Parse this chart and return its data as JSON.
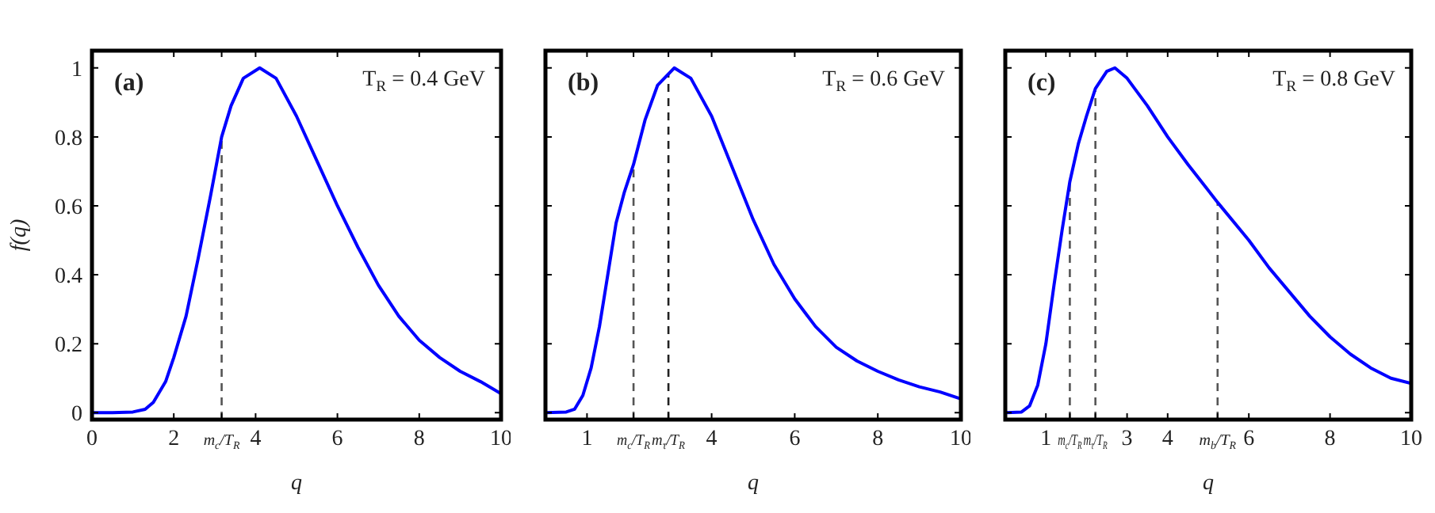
{
  "chart_data": [
    {
      "type": "line",
      "xlabel": "q",
      "ylabel": "f(q)",
      "annotations": [
        "(a)",
        "T$_{R}$ = 0.4 GeV"
      ],
      "xlim": [
        0,
        10
      ],
      "ylim": [
        -0.02,
        1.05
      ],
      "xticks": [
        0,
        2,
        {
          "value": 3.17,
          "label": "m$_{c}$/T$_{R}$"
        },
        4,
        6,
        8,
        10
      ],
      "yticks": [
        0,
        0.2,
        0.4,
        0.6,
        0.8,
        1
      ],
      "series": [
        {
          "color": "#0000ff",
          "x": [
            0,
            0.5,
            1.0,
            1.3,
            1.5,
            1.8,
            2.0,
            2.3,
            2.6,
            2.9,
            3.17,
            3.4,
            3.7,
            4.1,
            4.5,
            5.0,
            5.5,
            6.0,
            6.5,
            7.0,
            7.5,
            8.0,
            8.5,
            9.0,
            9.5,
            10
          ],
          "values": [
            0,
            0,
            0.002,
            0.01,
            0.03,
            0.09,
            0.16,
            0.28,
            0.45,
            0.63,
            0.8,
            0.89,
            0.97,
            1.0,
            0.97,
            0.86,
            0.73,
            0.6,
            0.48,
            0.37,
            0.28,
            0.21,
            0.16,
            0.12,
            0.09,
            0.055
          ]
        }
      ],
      "ref_lines": [
        {
          "axis": "x",
          "value": 3.17,
          "color": "#555555",
          "line_style": "dashed"
        }
      ]
    },
    {
      "type": "line",
      "xlabel": "q",
      "annotations": [
        "(b)",
        "T$_{R}$ = 0.6 GeV"
      ],
      "xlim": [
        0,
        10
      ],
      "ylim": [
        -0.02,
        1.05
      ],
      "tick_labels": "x",
      "xticks": [
        1,
        {
          "value": 2.12,
          "label": "m$_{c}$/T$_{R}$"
        },
        {
          "value": 2.96,
          "label": "m$_{τ}$/T$_{R}$"
        },
        4,
        6,
        8,
        10
      ],
      "yticks": [
        0,
        0.2,
        0.4,
        0.6,
        0.8,
        1
      ],
      "series": [
        {
          "color": "#0000ff",
          "x": [
            0,
            0.5,
            0.7,
            0.9,
            1.1,
            1.3,
            1.5,
            1.7,
            1.9,
            2.12,
            2.4,
            2.7,
            3.1,
            3.5,
            4.0,
            4.5,
            5.0,
            5.5,
            6.0,
            6.5,
            7.0,
            7.5,
            8.0,
            8.5,
            9.0,
            9.5,
            10
          ],
          "values": [
            0,
            0.002,
            0.01,
            0.05,
            0.13,
            0.25,
            0.4,
            0.55,
            0.64,
            0.72,
            0.85,
            0.95,
            1.0,
            0.97,
            0.86,
            0.71,
            0.56,
            0.43,
            0.33,
            0.25,
            0.19,
            0.15,
            0.12,
            0.095,
            0.075,
            0.06,
            0.04
          ]
        }
      ],
      "ref_lines": [
        {
          "axis": "x",
          "value": 2.12,
          "color": "#555555",
          "line_style": "dashed"
        },
        {
          "axis": "x",
          "value": 2.96,
          "color": "#222222",
          "line_style": "dashed"
        }
      ]
    },
    {
      "type": "line",
      "xlabel": "q",
      "annotations": [
        "(c)",
        "T$_{R}$ = 0.8 GeV"
      ],
      "xlim": [
        0,
        10
      ],
      "ylim": [
        -0.02,
        1.05
      ],
      "tick_labels": "x",
      "xticks": [
        1,
        {
          "value": 1.59,
          "label": "m$_{c}$/T$_{R}$"
        },
        {
          "value": 2.22,
          "label": "m$_{τ}$/T$_{R}$"
        },
        3,
        4,
        {
          "value": 5.23,
          "label": "m$_{b}$/T$_{R}$"
        },
        6,
        8,
        10
      ],
      "yticks": [
        0,
        0.2,
        0.4,
        0.6,
        0.8,
        1
      ],
      "series": [
        {
          "color": "#0000ff",
          "x": [
            0,
            0.4,
            0.6,
            0.8,
            1.0,
            1.2,
            1.4,
            1.59,
            1.8,
            2.0,
            2.22,
            2.5,
            2.7,
            3.0,
            3.5,
            4.0,
            4.5,
            5.23,
            6.0,
            6.5,
            7.0,
            7.5,
            8.0,
            8.5,
            9.0,
            9.5,
            10
          ],
          "values": [
            0,
            0.002,
            0.02,
            0.08,
            0.2,
            0.37,
            0.53,
            0.67,
            0.78,
            0.86,
            0.94,
            0.99,
            1.0,
            0.97,
            0.89,
            0.8,
            0.72,
            0.61,
            0.5,
            0.42,
            0.35,
            0.28,
            0.22,
            0.17,
            0.13,
            0.1,
            0.085
          ]
        }
      ],
      "ref_lines": [
        {
          "axis": "x",
          "value": 1.59,
          "color": "#555555",
          "line_style": "dashed"
        },
        {
          "axis": "x",
          "value": 2.22,
          "color": "#555555",
          "line_style": "dashed"
        },
        {
          "axis": "x",
          "value": 5.23,
          "color": "#555555",
          "line_style": "dashed"
        }
      ]
    }
  ]
}
